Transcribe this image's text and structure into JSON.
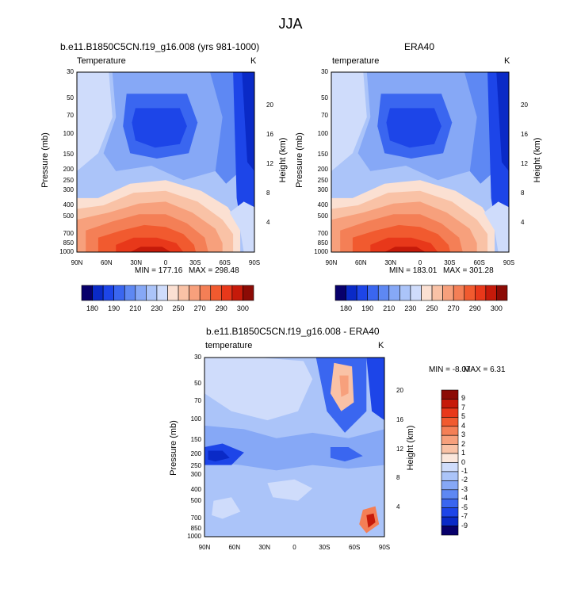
{
  "page_title": "JJA",
  "colors": {
    "blues": [
      "#08006b",
      "#0a2ac7",
      "#1d45e8",
      "#3a66f0",
      "#5e88f3",
      "#86a8f6",
      "#abc4f9",
      "#cfdcfb"
    ],
    "reds": [
      "#fbe0d2",
      "#f9c2a6",
      "#f7a07c",
      "#f47f56",
      "#f15a2f",
      "#e8381a",
      "#c61a0a",
      "#8c0b05"
    ],
    "diff_scale": [
      "#08006b",
      "#0a2ac7",
      "#1d45e8",
      "#3a66f0",
      "#5e88f3",
      "#86a8f6",
      "#abc4f9",
      "#cfdcfb",
      "#fbe7dc",
      "#f9c2a6",
      "#f7a07c",
      "#f47f56",
      "#f15a2f",
      "#e8381a",
      "#c61a0a",
      "#8c0b05"
    ]
  },
  "chart_data": [
    {
      "type": "contour",
      "title": "b.e11.B1850C5CN.f19_g16.008 (yrs 981-1000)",
      "left_label": "Temperature",
      "units": "K",
      "xlabel": "",
      "ylabel": "Pressure (mb)",
      "ylabel_right": "Height (km)",
      "x_ticks": [
        "90N",
        "60N",
        "30N",
        "0",
        "30S",
        "60S",
        "90S"
      ],
      "pressure_ticks": [
        "30",
        "50",
        "70",
        "100",
        "150",
        "200",
        "250",
        "300",
        "400",
        "500",
        "700",
        "850",
        "1000"
      ],
      "height_ticks": [
        "20",
        "16",
        "12",
        "8",
        "4"
      ],
      "min_label": "MIN = 177.16",
      "max_label": "MAX = 298.48",
      "min": 177.16,
      "max": 298.48,
      "colorbar_labels": [
        "180",
        "190",
        "210",
        "230",
        "250",
        "270",
        "290",
        "300"
      ]
    },
    {
      "type": "contour",
      "title": "ERA40",
      "left_label": "temperature",
      "units": "K",
      "xlabel": "",
      "ylabel": "Pressure (mb)",
      "ylabel_right": "Height (km)",
      "x_ticks": [
        "90N",
        "60N",
        "30N",
        "0",
        "30S",
        "60S",
        "90S"
      ],
      "pressure_ticks": [
        "30",
        "50",
        "70",
        "100",
        "150",
        "200",
        "250",
        "300",
        "400",
        "500",
        "700",
        "850",
        "1000"
      ],
      "height_ticks": [
        "20",
        "16",
        "12",
        "8",
        "4"
      ],
      "min_label": "MIN = 183.01",
      "max_label": "MAX = 301.28",
      "min": 183.01,
      "max": 301.28,
      "colorbar_labels": [
        "180",
        "190",
        "210",
        "230",
        "250",
        "270",
        "290",
        "300"
      ]
    },
    {
      "type": "contour",
      "title": "b.e11.B1850C5CN.f19_g16.008 - ERA40",
      "left_label": "temperature",
      "units": "K",
      "xlabel": "",
      "ylabel": "Pressure (mb)",
      "ylabel_right": "Height (km)",
      "x_ticks": [
        "90N",
        "60N",
        "30N",
        "0",
        "30S",
        "60S",
        "90S"
      ],
      "pressure_ticks": [
        "30",
        "50",
        "70",
        "100",
        "150",
        "200",
        "250",
        "300",
        "400",
        "500",
        "700",
        "850",
        "1000"
      ],
      "height_ticks": [
        "20",
        "16",
        "12",
        "8",
        "4"
      ],
      "min_label": "MIN =  -8.07",
      "max_label": "MAX =   6.31",
      "min": -8.07,
      "max": 6.31,
      "colorbar_labels": [
        "9",
        "7",
        "5",
        "4",
        "3",
        "2",
        "1",
        "0",
        "-1",
        "-2",
        "-3",
        "-4",
        "-5",
        "-7",
        "-9"
      ]
    }
  ]
}
